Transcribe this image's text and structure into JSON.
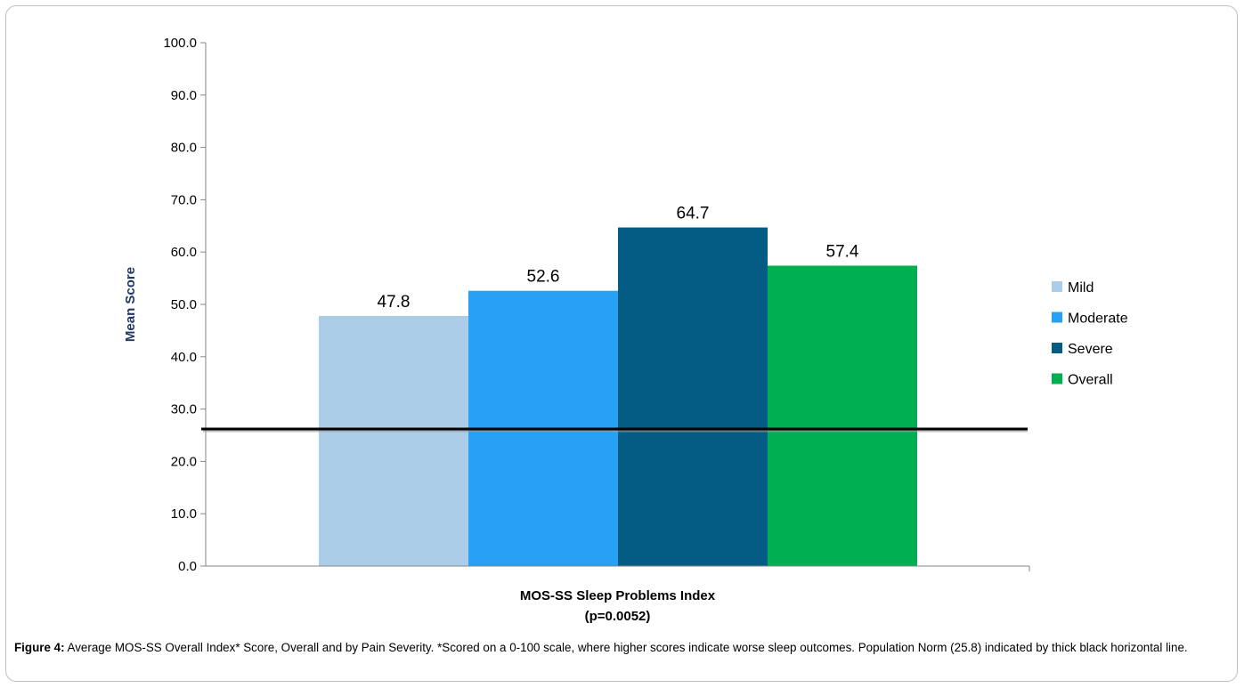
{
  "chart_data": {
    "type": "bar",
    "categories": [
      "MOS-SS Sleep Problems Index"
    ],
    "xlabel": "MOS-SS Sleep Problems Index",
    "xlabel_sub": "(p=0.0052)",
    "ylabel": "Mean Score",
    "ylim": [
      0,
      100
    ],
    "yticks": [
      "0.0",
      "10.0",
      "20.0",
      "30.0",
      "40.0",
      "50.0",
      "60.0",
      "70.0",
      "80.0",
      "90.0",
      "100.0"
    ],
    "series": [
      {
        "name": "Mild",
        "values": [
          47.8
        ],
        "label": "47.8",
        "color": "#abcde8"
      },
      {
        "name": "Moderate",
        "values": [
          52.6
        ],
        "label": "52.6",
        "color": "#27a1f5"
      },
      {
        "name": "Severe",
        "values": [
          64.7
        ],
        "label": "64.7",
        "color": "#045b84"
      },
      {
        "name": "Overall",
        "values": [
          57.4
        ],
        "label": "57.4",
        "color": "#00b050"
      }
    ],
    "reference_line": {
      "value": 25.8,
      "color": "#000000"
    },
    "grid": false,
    "legend": "right",
    "ylabel_color": "#1f3864"
  },
  "caption": {
    "label": "Figure 4:",
    "text": "Average MOS-SS Overall Index* Score, Overall and by Pain Severity. *Scored on a 0-100 scale, where higher scores indicate worse sleep outcomes. Population Norm (25.8) indicated by thick black horizontal line."
  }
}
